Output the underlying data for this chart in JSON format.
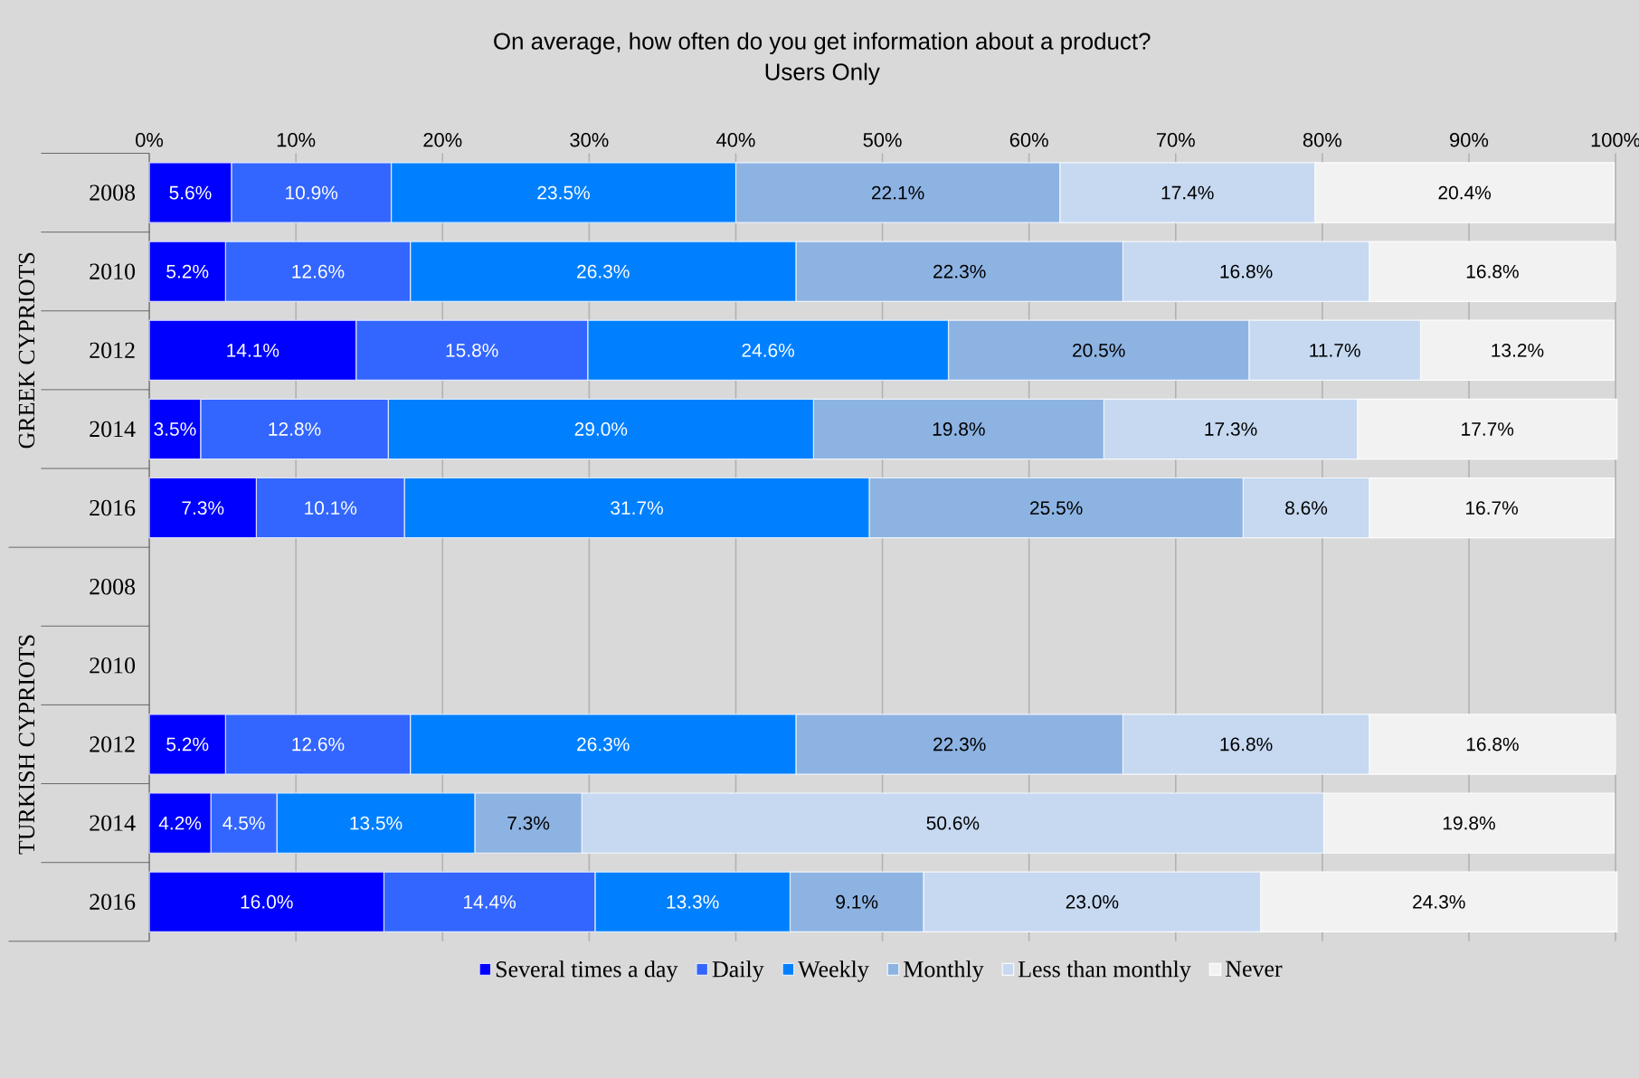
{
  "chart_data": {
    "type": "bar",
    "orientation": "horizontal",
    "stacked": true,
    "title": "On average, how often do you get information about a product?",
    "subtitle": "Users Only",
    "annotations": [
      "GREEK CYPRIOTS",
      "TURKISH CYPRIOTS"
    ],
    "categories": [
      "2008",
      "2010",
      "2012",
      "2014",
      "2016",
      "2008",
      "2010",
      "2012",
      "2014",
      "2016"
    ],
    "xlim": [
      0,
      100
    ],
    "xticks": [
      {
        "value": 0,
        "label": "0%"
      },
      {
        "value": 10,
        "label": "10%"
      },
      {
        "value": 20,
        "label": "20%"
      },
      {
        "value": 30,
        "label": "30%"
      },
      {
        "value": 40,
        "label": "40%"
      },
      {
        "value": 50,
        "label": "50%"
      },
      {
        "value": 60,
        "label": "60%"
      },
      {
        "value": 70,
        "label": "70%"
      },
      {
        "value": 80,
        "label": "80%"
      },
      {
        "value": 90,
        "label": "90%"
      },
      {
        "value": 100,
        "label": "100%"
      }
    ],
    "grid": "x",
    "legend": "bottom",
    "series": [
      {
        "name": "Several times a day",
        "color": "#0000ff",
        "values": [
          5.6,
          5.2,
          14.1,
          3.5,
          7.3,
          null,
          null,
          5.2,
          4.2,
          16.0
        ],
        "value_labels": [
          "5.6%",
          "5.2%",
          "14.1%",
          "3.5%",
          "7.3%",
          null,
          null,
          "5.2%",
          "4.2%",
          "16.0%"
        ]
      },
      {
        "name": "Daily",
        "color": "#3366ff",
        "values": [
          10.9,
          12.6,
          15.8,
          12.8,
          10.1,
          null,
          null,
          12.6,
          4.5,
          14.4
        ],
        "value_labels": [
          "10.9%",
          "12.6%",
          "15.8%",
          "12.8%",
          "10.1%",
          null,
          null,
          "12.6%",
          "4.5%",
          "14.4%"
        ]
      },
      {
        "name": "Weekly",
        "color": "#0080ff",
        "values": [
          23.5,
          26.3,
          24.6,
          29.0,
          31.7,
          null,
          null,
          26.3,
          13.5,
          13.3
        ],
        "value_labels": [
          "23.5%",
          "26.3%",
          "24.6%",
          "29.0%",
          "31.7%",
          null,
          null,
          "26.3%",
          "13.5%",
          "13.3%"
        ]
      },
      {
        "name": "Monthly",
        "color": "#8db3e2",
        "values": [
          22.1,
          22.3,
          20.5,
          19.8,
          25.5,
          null,
          null,
          22.3,
          7.3,
          9.1
        ],
        "value_labels": [
          "22.1%",
          "22.3%",
          "20.5%",
          "19.8%",
          "25.5%",
          null,
          null,
          "22.3%",
          "7.3%",
          "9.1%"
        ]
      },
      {
        "name": "Less than monthly",
        "color": "#c6d9f1",
        "values": [
          17.4,
          16.8,
          11.7,
          17.3,
          8.6,
          null,
          null,
          16.8,
          50.6,
          23.0
        ],
        "value_labels": [
          "17.4%",
          "16.8%",
          "11.7%",
          "17.3%",
          "8.6%",
          null,
          null,
          "16.8%",
          "50.6%",
          "23.0%"
        ]
      },
      {
        "name": "Never",
        "color": "#f2f2f2",
        "values": [
          20.4,
          16.8,
          13.2,
          17.7,
          16.7,
          null,
          null,
          16.8,
          19.8,
          24.3
        ],
        "value_labels": [
          "20.4%",
          "16.8%",
          "13.2%",
          "17.7%",
          "16.7%",
          null,
          null,
          "16.8%",
          "19.8%",
          "24.3%"
        ]
      }
    ]
  }
}
